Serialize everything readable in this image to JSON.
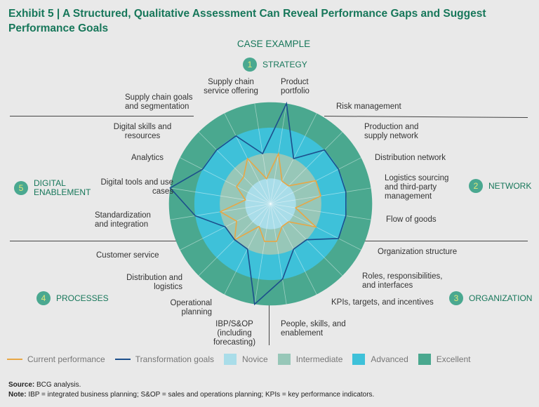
{
  "title": "Exhibit 5 | A Structured, Qualitative Assessment Can Reveal Performance Gaps and Suggest Performance Goals",
  "subtitle": "CASE EXAMPLE",
  "sections": [
    {
      "num": "1",
      "label": "STRATEGY"
    },
    {
      "num": "2",
      "label": "NETWORK"
    },
    {
      "num": "3",
      "label": "ORGANIZATION"
    },
    {
      "num": "4",
      "label": "PROCESSES"
    },
    {
      "num": "5",
      "label": "DIGITAL ENABLEMENT"
    }
  ],
  "colors": {
    "novice": "#a9dde9",
    "intermediate": "#97c7b8",
    "advanced": "#3ec1d9",
    "excellent": "#4aa88f",
    "current": "#e8a745",
    "goal": "#1c4f8c",
    "title": "#17775a"
  },
  "chart_data": {
    "type": "radar",
    "title": "CASE EXAMPLE",
    "levels": [
      "Novice",
      "Intermediate",
      "Advanced",
      "Excellent"
    ],
    "range": [
      0,
      4
    ],
    "axes": [
      "Product portfolio",
      "Risk management",
      "Production and supply network",
      "Distribution network",
      "Logistics sourcing and third-party management",
      "Flow of goods",
      "Organization structure",
      "Roles, responsibilities, and interfaces",
      "KPIs, targets, and incentives",
      "People, skills, and enablement",
      "IBP/S&OP (including forecasting)",
      "Operational planning",
      "Distribution and logistics",
      "Customer service",
      "Standardization and integration",
      "Digital tools and use cases",
      "Analytics",
      "Digital skills and resources",
      "Supply chain goals and segmentation",
      "Supply chain service offering"
    ],
    "series": [
      {
        "name": "Current performance",
        "values": [
          2,
          1,
          1,
          2,
          2,
          1,
          2,
          1,
          1,
          1.5,
          1.5,
          1,
          2,
          1.5,
          2,
          1,
          1.5,
          1.5,
          2,
          1
        ]
      },
      {
        "name": "Transformation goals",
        "values": [
          4,
          2,
          3,
          3,
          3,
          3,
          3,
          2,
          2,
          3,
          4,
          2,
          2,
          2,
          3,
          4,
          3,
          3,
          3,
          2
        ]
      }
    ],
    "legend": [
      "Current performance",
      "Transformation goals",
      "Novice",
      "Intermediate",
      "Advanced",
      "Excellent"
    ],
    "legend_position": "bottom"
  },
  "footer": {
    "source_label": "Source:",
    "source": "BCG analysis.",
    "note_label": "Note:",
    "note": "IBP = integrated business planning; S&OP = sales and operations planning; KPIs = key performance indicators."
  }
}
